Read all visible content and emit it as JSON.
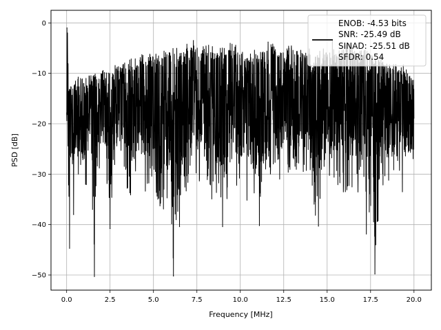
{
  "chart_data": {
    "type": "line",
    "title": "",
    "xlabel": "Frequency [MHz]",
    "ylabel": "PSD [dB]",
    "xlim": [
      -0.9,
      21.0
    ],
    "ylim": [
      -53,
      2.5
    ],
    "xticks": [
      0.0,
      2.5,
      5.0,
      7.5,
      10.0,
      12.5,
      15.0,
      17.5,
      20.0
    ],
    "xtick_labels": [
      "0.0",
      "2.5",
      "5.0",
      "7.5",
      "10.0",
      "12.5",
      "15.0",
      "17.5",
      "20.0"
    ],
    "yticks": [
      0,
      -10,
      -20,
      -30,
      -40,
      -50
    ],
    "ytick_labels": [
      "0",
      "−10",
      "−20",
      "−30",
      "−40",
      "−50"
    ],
    "grid": true,
    "legend_position": "top-right",
    "line_color": "#000000",
    "legend": {
      "lines": [
        "ENOB: -4.53 bits",
        "SNR: -25.49 dB",
        "SINAD: -25.51 dB",
        "SFDR: 0.54"
      ]
    },
    "series": [
      {
        "x": [
          0.0,
          0.02,
          0.05,
          0.08,
          0.1,
          0.15,
          0.2,
          0.25,
          0.3,
          0.35,
          0.4,
          0.5,
          0.6,
          0.7,
          0.8,
          1.0,
          1.2,
          1.4,
          1.6,
          1.8,
          2.0,
          2.2,
          2.5,
          2.8,
          3.0,
          3.3,
          3.6,
          4.0,
          4.3,
          4.6,
          5.0,
          5.3,
          5.6,
          6.0,
          6.1,
          6.3,
          6.6,
          7.0,
          7.3,
          7.6,
          8.0,
          8.3,
          8.6,
          8.9,
          9.2,
          9.5,
          9.8,
          10.0,
          10.3,
          10.6,
          11.0,
          11.3,
          11.6,
          12.0,
          12.3,
          12.6,
          13.0,
          13.3,
          13.6,
          14.0,
          14.3,
          14.6,
          15.0,
          15.3,
          15.6,
          16.0,
          16.3,
          16.6,
          17.0,
          17.3,
          17.6,
          17.8,
          18.0,
          18.3,
          18.6,
          19.0,
          19.3,
          19.6,
          20.0
        ],
        "y_upper": [
          -17,
          -1,
          -2,
          -6,
          -10,
          -8,
          -11,
          -12,
          -13,
          -11,
          -12,
          -11,
          -11,
          -10,
          -10,
          -10,
          -10,
          -10,
          -10,
          -10,
          -9,
          -9,
          -9,
          -8,
          -8,
          -8,
          -7,
          -7,
          -6,
          -6,
          -6,
          -6,
          -5,
          -5,
          -5,
          -5,
          -5,
          -4,
          -4,
          -5,
          -4,
          -4,
          -5,
          -5,
          -4,
          -4,
          -4,
          -5,
          -5,
          -5,
          -5,
          -5,
          -4,
          -4,
          -5,
          -5,
          -4,
          -5,
          -5,
          -5,
          -6,
          -5,
          -5,
          -5,
          -5,
          -4,
          -4,
          -5,
          -5,
          -5,
          -5,
          -6,
          -6,
          -7,
          -8,
          -8,
          -8,
          -9,
          -11
        ],
        "y_lower": [
          -20,
          -25,
          -16,
          -38,
          -45,
          -32,
          -36,
          -30,
          -33,
          -34,
          -38,
          -28,
          -33,
          -30,
          -31,
          -33,
          -32,
          -27,
          -50,
          -28,
          -30,
          -27,
          -41,
          -34,
          -29,
          -30,
          -35,
          -33,
          -31,
          -35,
          -31,
          -36,
          -38,
          -40,
          -50,
          -40,
          -34,
          -34,
          -30,
          -33,
          -31,
          -36,
          -34,
          -36,
          -40,
          -29,
          -33,
          -33,
          -36,
          -35,
          -40,
          -36,
          -34,
          -30,
          -32,
          -30,
          -30,
          -30,
          -31,
          -29,
          -40,
          -35,
          -33,
          -30,
          -33,
          -35,
          -34,
          -34,
          -34,
          -44,
          -34,
          -50,
          -34,
          -32,
          -33,
          -33,
          -34,
          -30,
          -30
        ],
        "notable_dips": [
          {
            "x": 0.17,
            "y": -44.7
          },
          {
            "x": 0.4,
            "y": -38.0
          },
          {
            "x": 1.6,
            "y": -50.3
          },
          {
            "x": 2.5,
            "y": -40.8
          },
          {
            "x": 6.05,
            "y": -39.8
          },
          {
            "x": 6.15,
            "y": -50.2
          },
          {
            "x": 6.5,
            "y": -40.4
          },
          {
            "x": 8.98,
            "y": -40.4
          },
          {
            "x": 11.1,
            "y": -40.2
          },
          {
            "x": 14.5,
            "y": -40.3
          },
          {
            "x": 17.75,
            "y": -49.8
          },
          {
            "x": 17.8,
            "y": -44.0
          }
        ],
        "peaks": [
          {
            "x": 0.02,
            "y": -1.0
          },
          {
            "x": 0.05,
            "y": -2.0
          },
          {
            "x": 7.3,
            "y": -3.5
          },
          {
            "x": 11.6,
            "y": -3.8
          },
          {
            "x": 15.3,
            "y": -3.5
          }
        ]
      }
    ]
  }
}
